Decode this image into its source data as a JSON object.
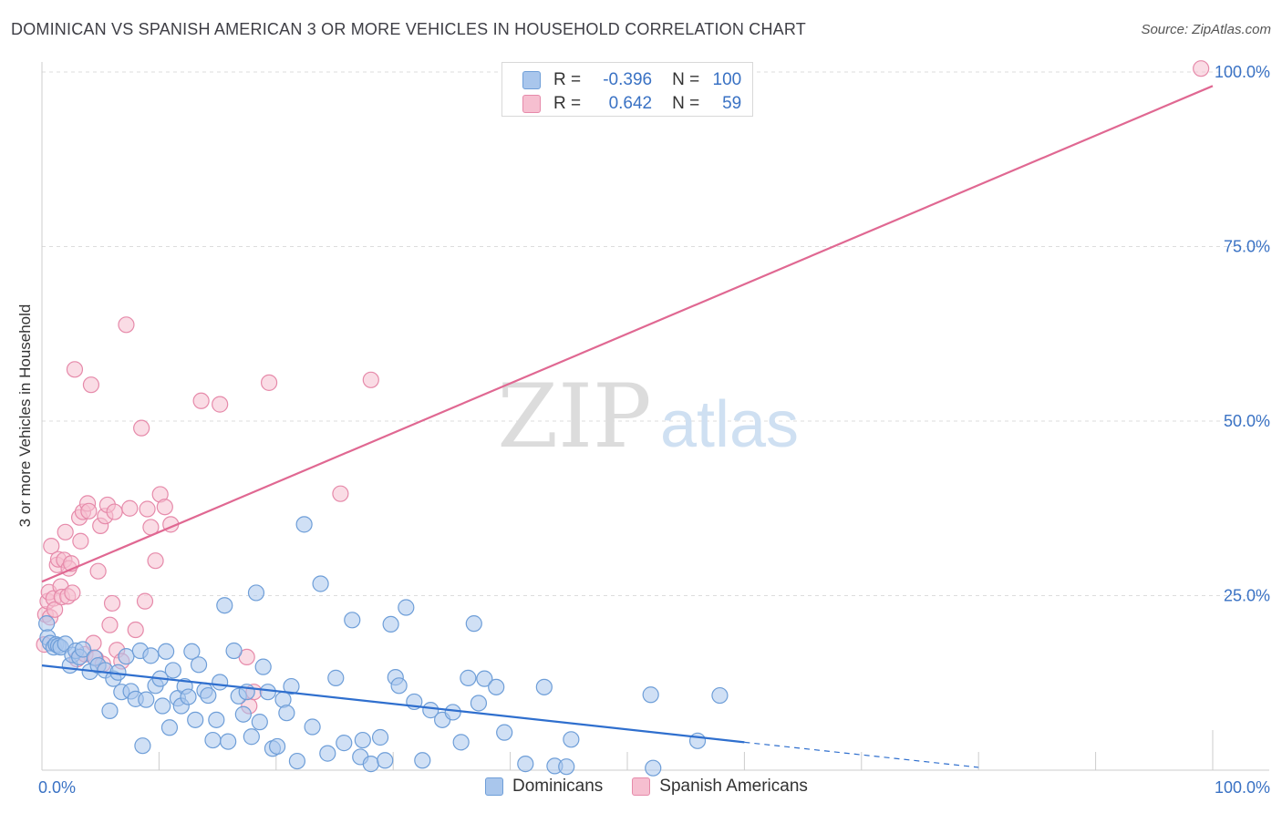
{
  "title": "DOMINICAN VS SPANISH AMERICAN 3 OR MORE VEHICLES IN HOUSEHOLD CORRELATION CHART",
  "source": "Source: ZipAtlas.com",
  "watermark": {
    "zip": "ZIP",
    "atlas": "atlas"
  },
  "legend": {
    "r_label": "R =",
    "n_label": "N =",
    "rows": [
      {
        "r": "-0.396",
        "n": "100"
      },
      {
        "r": "0.642",
        "n": "59"
      }
    ]
  },
  "colors": {
    "dominicans_fill": "#a9c6ec",
    "dominicans_stroke": "#6e9ed8",
    "dominicans_line": "#2f6fce",
    "spanish_fill": "#f6bfd0",
    "spanish_stroke": "#e68aaa",
    "spanish_line": "#e06892",
    "grid": "#dddddd",
    "tick_label": "#3a72c4"
  },
  "chart_data": {
    "type": "scatter",
    "title": "DOMINICAN VS SPANISH AMERICAN 3 OR MORE VEHICLES IN HOUSEHOLD CORRELATION CHART",
    "xlabel": "",
    "ylabel": "3 or more Vehicles in Household",
    "xlim": [
      0,
      100
    ],
    "ylim": [
      0,
      100
    ],
    "x_tick_labels": [
      "0.0%",
      "100.0%"
    ],
    "y_tick_labels": [
      "25.0%",
      "50.0%",
      "75.0%",
      "100.0%"
    ],
    "y_ticks": [
      25,
      50,
      75,
      100
    ],
    "grid": true,
    "legend_position": "bottom-center",
    "series": [
      {
        "name": "Dominicans",
        "r": -0.396,
        "n": 100,
        "trend": {
          "x0": 0,
          "y0": 15.0,
          "x1": 60,
          "y1": 4.0,
          "dash_to_x": 80,
          "dash_to_y": 0.4
        },
        "points": [
          [
            0.4,
            21.0
          ],
          [
            0.5,
            19.0
          ],
          [
            0.7,
            18.2
          ],
          [
            1.0,
            17.6
          ],
          [
            1.2,
            18.0
          ],
          [
            1.4,
            17.8
          ],
          [
            1.6,
            17.6
          ],
          [
            2.0,
            18.1
          ],
          [
            2.4,
            15.0
          ],
          [
            2.6,
            16.5
          ],
          [
            2.9,
            17.1
          ],
          [
            3.2,
            16.2
          ],
          [
            3.5,
            17.3
          ],
          [
            4.1,
            14.1
          ],
          [
            4.5,
            16.1
          ],
          [
            4.8,
            15.0
          ],
          [
            5.4,
            14.3
          ],
          [
            5.8,
            8.5
          ],
          [
            6.1,
            13.1
          ],
          [
            6.5,
            14.0
          ],
          [
            6.8,
            11.2
          ],
          [
            7.2,
            16.3
          ],
          [
            7.6,
            11.3
          ],
          [
            8.0,
            10.2
          ],
          [
            8.4,
            17.1
          ],
          [
            8.6,
            3.5
          ],
          [
            8.9,
            10.1
          ],
          [
            9.3,
            16.4
          ],
          [
            9.7,
            12.1
          ],
          [
            10.1,
            13.1
          ],
          [
            10.3,
            9.2
          ],
          [
            10.6,
            17.0
          ],
          [
            10.9,
            6.1
          ],
          [
            11.2,
            14.3
          ],
          [
            11.6,
            10.3
          ],
          [
            11.9,
            9.2
          ],
          [
            12.2,
            12.0
          ],
          [
            12.5,
            10.5
          ],
          [
            12.8,
            17.0
          ],
          [
            13.1,
            7.2
          ],
          [
            13.4,
            15.1
          ],
          [
            13.9,
            11.4
          ],
          [
            14.2,
            10.7
          ],
          [
            14.6,
            4.3
          ],
          [
            14.9,
            7.2
          ],
          [
            15.2,
            12.6
          ],
          [
            15.6,
            23.6
          ],
          [
            15.9,
            4.1
          ],
          [
            16.4,
            17.1
          ],
          [
            16.8,
            10.6
          ],
          [
            17.2,
            8.0
          ],
          [
            17.5,
            11.2
          ],
          [
            17.9,
            4.8
          ],
          [
            18.3,
            25.4
          ],
          [
            18.6,
            6.9
          ],
          [
            18.9,
            14.8
          ],
          [
            19.3,
            11.2
          ],
          [
            19.7,
            3.1
          ],
          [
            20.1,
            3.4
          ],
          [
            20.6,
            10.1
          ],
          [
            20.9,
            8.2
          ],
          [
            21.3,
            12.0
          ],
          [
            21.8,
            1.3
          ],
          [
            22.4,
            35.2
          ],
          [
            23.1,
            6.2
          ],
          [
            23.8,
            26.7
          ],
          [
            24.4,
            2.4
          ],
          [
            25.1,
            13.2
          ],
          [
            25.8,
            3.9
          ],
          [
            26.5,
            21.5
          ],
          [
            27.2,
            1.9
          ],
          [
            27.4,
            4.3
          ],
          [
            28.1,
            0.9
          ],
          [
            28.9,
            4.7
          ],
          [
            29.3,
            1.4
          ],
          [
            29.8,
            20.9
          ],
          [
            30.2,
            13.3
          ],
          [
            30.5,
            12.1
          ],
          [
            31.1,
            23.3
          ],
          [
            31.8,
            9.8
          ],
          [
            32.5,
            1.4
          ],
          [
            33.2,
            8.6
          ],
          [
            34.2,
            7.2
          ],
          [
            35.1,
            8.3
          ],
          [
            35.8,
            4.0
          ],
          [
            36.4,
            13.2
          ],
          [
            36.9,
            21.0
          ],
          [
            37.3,
            9.6
          ],
          [
            37.8,
            13.1
          ],
          [
            38.8,
            11.9
          ],
          [
            39.5,
            5.4
          ],
          [
            41.3,
            0.9
          ],
          [
            42.9,
            11.9
          ],
          [
            43.8,
            0.6
          ],
          [
            44.8,
            0.5
          ],
          [
            45.2,
            4.4
          ],
          [
            52.0,
            10.8
          ],
          [
            52.2,
            0.3
          ],
          [
            57.9,
            10.7
          ],
          [
            56.0,
            4.2
          ]
        ]
      },
      {
        "name": "Spanish Americans",
        "r": 0.642,
        "n": 59,
        "trend": {
          "x0": 0,
          "y0": 27.0,
          "x1": 100,
          "y1": 98.0
        },
        "points": [
          [
            0.2,
            18.0
          ],
          [
            0.3,
            22.3
          ],
          [
            0.5,
            24.2
          ],
          [
            0.6,
            25.5
          ],
          [
            0.7,
            21.9
          ],
          [
            0.8,
            32.1
          ],
          [
            1.0,
            24.6
          ],
          [
            1.1,
            23.0
          ],
          [
            1.3,
            29.4
          ],
          [
            1.4,
            30.2
          ],
          [
            1.6,
            26.3
          ],
          [
            1.7,
            24.8
          ],
          [
            1.9,
            30.1
          ],
          [
            2.0,
            34.1
          ],
          [
            2.2,
            24.9
          ],
          [
            2.3,
            28.9
          ],
          [
            2.5,
            29.6
          ],
          [
            2.6,
            25.4
          ],
          [
            2.8,
            57.4
          ],
          [
            3.0,
            15.9
          ],
          [
            3.2,
            36.2
          ],
          [
            3.3,
            32.8
          ],
          [
            3.5,
            37.0
          ],
          [
            3.7,
            16.6
          ],
          [
            3.9,
            38.2
          ],
          [
            4.0,
            37.1
          ],
          [
            4.2,
            55.2
          ],
          [
            4.4,
            18.2
          ],
          [
            4.6,
            16.0
          ],
          [
            4.8,
            28.5
          ],
          [
            5.0,
            35.0
          ],
          [
            5.2,
            15.2
          ],
          [
            5.4,
            36.4
          ],
          [
            5.6,
            38.0
          ],
          [
            5.8,
            20.8
          ],
          [
            6.0,
            23.9
          ],
          [
            6.2,
            37.0
          ],
          [
            6.4,
            17.2
          ],
          [
            6.8,
            15.6
          ],
          [
            7.2,
            63.8
          ],
          [
            7.5,
            37.5
          ],
          [
            8.0,
            20.1
          ],
          [
            8.5,
            49.0
          ],
          [
            8.8,
            24.2
          ],
          [
            9.0,
            37.4
          ],
          [
            9.3,
            34.8
          ],
          [
            9.7,
            30.0
          ],
          [
            10.1,
            39.5
          ],
          [
            10.5,
            37.7
          ],
          [
            11.0,
            35.2
          ],
          [
            13.6,
            52.9
          ],
          [
            15.2,
            52.4
          ],
          [
            17.5,
            16.2
          ],
          [
            17.7,
            9.2
          ],
          [
            18.1,
            11.2
          ],
          [
            19.4,
            55.5
          ],
          [
            25.5,
            39.6
          ],
          [
            28.1,
            55.9
          ],
          [
            99.0,
            100.5
          ]
        ]
      }
    ]
  }
}
